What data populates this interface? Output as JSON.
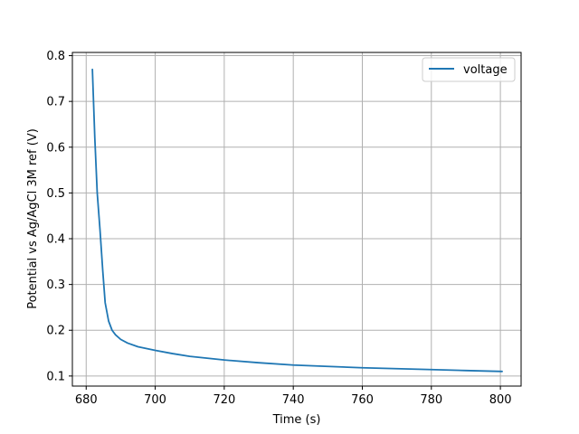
{
  "chart_data": {
    "type": "line",
    "xlabel": "Time (s)",
    "ylabel": "Potential vs Ag/AgCl 3M ref (V)",
    "xlim": [
      676,
      806
    ],
    "ylim": [
      0.078,
      0.807
    ],
    "xticks": [
      680,
      700,
      720,
      740,
      760,
      780,
      800
    ],
    "yticks": [
      0.1,
      0.2,
      0.3,
      0.4,
      0.5,
      0.6,
      0.7,
      0.8
    ],
    "xtick_labels": [
      "680",
      "700",
      "720",
      "740",
      "760",
      "780",
      "800"
    ],
    "ytick_labels": [
      "0.1",
      "0.2",
      "0.3",
      "0.4",
      "0.5",
      "0.6",
      "0.7",
      "0.8"
    ],
    "grid": true,
    "legend_position": "upper right",
    "series": [
      {
        "name": "voltage",
        "color": "#1f77b4",
        "x": [
          681.8,
          682.5,
          683.2,
          684.0,
          684.8,
          685.5,
          686.5,
          687.5,
          688.5,
          690.0,
          692.0,
          695.0,
          700.0,
          705.0,
          710.0,
          720.0,
          730.0,
          740.0,
          750.0,
          760.0,
          770.0,
          780.0,
          790.0,
          800.5
        ],
        "y": [
          0.77,
          0.62,
          0.5,
          0.42,
          0.33,
          0.26,
          0.22,
          0.2,
          0.19,
          0.18,
          0.172,
          0.164,
          0.156,
          0.149,
          0.143,
          0.135,
          0.129,
          0.124,
          0.121,
          0.118,
          0.116,
          0.114,
          0.112,
          0.11
        ]
      }
    ]
  }
}
